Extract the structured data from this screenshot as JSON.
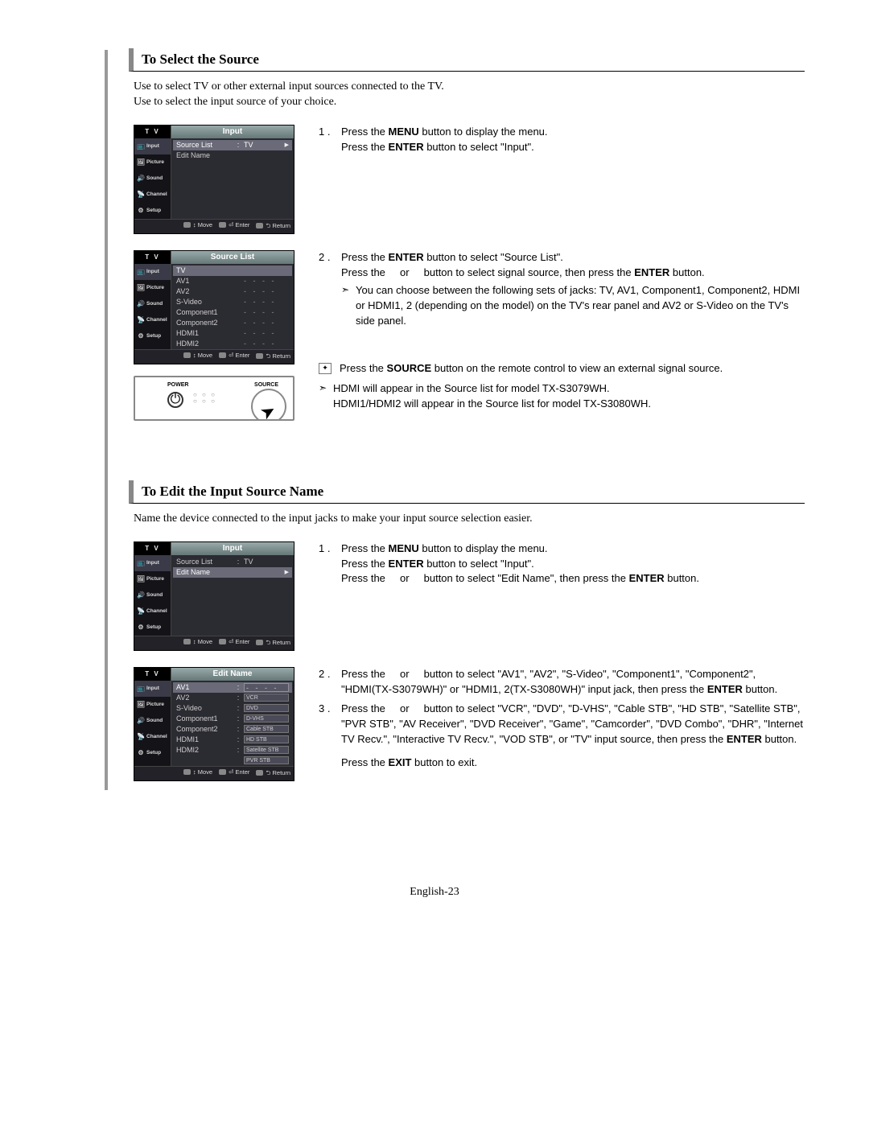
{
  "colors": {
    "page_bg": "#ffffff",
    "text": "#000000",
    "gutter": "#999999",
    "heading_accent": "#888888",
    "osd_bg": "#2b2b32",
    "osd_side_bg": "#131318",
    "osd_title_grad_from": "#99aaaa",
    "osd_title_grad_to": "#667777",
    "osd_text": "#cfcfcf",
    "osd_sel": "#6a6a78",
    "remote_border": "#888888"
  },
  "typography": {
    "heading_font": "Times New Roman",
    "heading_size_pt": 13,
    "body_font": "Times New Roman",
    "body_size_pt": 10.5,
    "instr_font": "Arial",
    "instr_size_pt": 10,
    "osd_font": "Arial",
    "osd_label_size_pt": 7
  },
  "page_number": "English-23",
  "section1": {
    "heading": "To Select the Source",
    "intro_line1": "Use to select TV or other external input sources connected to the TV.",
    "intro_line2": "Use to select the input source of your choice.",
    "osd_input": {
      "tv_badge": "T V",
      "title": "Input",
      "side_items": [
        "Input",
        "Picture",
        "Sound",
        "Channel",
        "Setup"
      ],
      "selected_side_index": 0,
      "rows": [
        {
          "label": "Source List",
          "sep": ":",
          "value": "TV",
          "selected": true,
          "caret": true
        },
        {
          "label": "Edit Name",
          "sep": "",
          "value": "",
          "selected": false
        }
      ],
      "hints": [
        "Move",
        "Enter",
        "Return"
      ]
    },
    "osd_source_list": {
      "tv_badge": "T V",
      "title": "Source List",
      "side_items": [
        "Input",
        "Picture",
        "Sound",
        "Channel",
        "Setup"
      ],
      "selected_side_index": 0,
      "rows": [
        {
          "label": "TV",
          "value": "",
          "selected": true
        },
        {
          "label": "AV1",
          "value": "- - - -"
        },
        {
          "label": "AV2",
          "value": "- - - -"
        },
        {
          "label": "S-Video",
          "value": "- - - -"
        },
        {
          "label": "Component1",
          "value": "- - - -"
        },
        {
          "label": "Component2",
          "value": "- - - -"
        },
        {
          "label": "HDMI1",
          "value": "- - - -"
        },
        {
          "label": "HDMI2",
          "value": "- - - -"
        }
      ],
      "hints": [
        "Move",
        "Enter",
        "Return"
      ]
    },
    "remote": {
      "power_label": "POWER",
      "source_label": "SOURCE"
    },
    "steps": {
      "s1a": "Press the ",
      "s1a_bold": "MENU",
      "s1a_tail": " button to display the menu.",
      "s1b": "Press the ",
      "s1b_bold": "ENTER",
      "s1b_tail": " button to select \"Input\".",
      "s2a": "Press the ",
      "s2a_bold": "ENTER",
      "s2a_tail": " button to select \"Source List\".",
      "s2b_pre": "Press the ",
      "s2b_or": " or ",
      "s2b_mid": " button to select signal source, then press the ",
      "s2b_bold": "ENTER",
      "s2b_tail": " button.",
      "s2_note": "You can choose between the following sets of jacks: TV, AV1, Component1, Component2, HDMI or HDMI1, 2 (depending on the model) on the TV's rear panel and AV2 or S-Video on the TV's side panel.",
      "icon_note_pre": "Press the ",
      "icon_note_bold": "SOURCE",
      "icon_note_tail": " button on the remote control to view an external signal source.",
      "hdmi_note1": "HDMI will appear in the Source list for model TX-S3079WH.",
      "hdmi_note2": "HDMI1/HDMI2 will appear in the Source list for model TX-S3080WH."
    }
  },
  "section2": {
    "heading": "To Edit the Input Source Name",
    "intro": "Name the device connected to the input jacks to make your input source selection easier.",
    "osd_input": {
      "tv_badge": "T V",
      "title": "Input",
      "side_items": [
        "Input",
        "Picture",
        "Sound",
        "Channel",
        "Setup"
      ],
      "selected_side_index": 0,
      "rows": [
        {
          "label": "Source List",
          "sep": ":",
          "value": "TV"
        },
        {
          "label": "Edit Name",
          "sep": "",
          "value": "",
          "selected": true,
          "caret": true
        }
      ],
      "hints": [
        "Move",
        "Enter",
        "Return"
      ]
    },
    "osd_edit_name": {
      "tv_badge": "T V",
      "title": "Edit Name",
      "side_items": [
        "Input",
        "Picture",
        "Sound",
        "Channel",
        "Setup"
      ],
      "selected_side_index": 0,
      "rows": [
        {
          "label": "AV1",
          "sep": ":",
          "value": "- - - -",
          "selected": true,
          "boxed": true
        },
        {
          "label": "AV2",
          "sep": ":",
          "value": "VCR",
          "opt": true
        },
        {
          "label": "S-Video",
          "sep": ":",
          "value": "DVD",
          "opt": true
        },
        {
          "label": "Component1",
          "sep": ":",
          "value": "D-VHS",
          "opt": true
        },
        {
          "label": "Component2",
          "sep": ":",
          "value": "Cable STB",
          "opt": true
        },
        {
          "label": "HDMI1",
          "sep": ":",
          "value": "HD STB",
          "opt": true
        },
        {
          "label": "HDMI2",
          "sep": ":",
          "value": "Satellite STB",
          "opt": true
        },
        {
          "label": "",
          "sep": "",
          "value": "PVR STB",
          "opt": true
        }
      ],
      "hints": [
        "Move",
        "Enter",
        "Return"
      ]
    },
    "steps": {
      "s1a": "Press the ",
      "s1a_bold": "MENU",
      "s1a_tail": " button to display the menu.",
      "s1b": "Press the ",
      "s1b_bold": "ENTER",
      "s1b_tail": " button to select \"Input\".",
      "s1c_pre": "Press the ",
      "s1c_or": " or ",
      "s1c_mid": " button to select \"Edit Name\", then press the ",
      "s1c_bold": "ENTER",
      "s1c_tail": " button.",
      "s2_pre": "Press the ",
      "s2_or": " or ",
      "s2_mid": " button to select \"AV1\", \"AV2\", \"S-Video\", \"Component1\", \"Component2\", \"HDMI(TX-S3079WH)\" or \"HDMI1, 2(TX-S3080WH)\" input jack, then press the ",
      "s2_bold": "ENTER",
      "s2_tail": " button.",
      "s3_pre": "Press the ",
      "s3_or": " or ",
      "s3_mid": " button to select \"VCR\", \"DVD\", \"D-VHS\", \"Cable STB\", \"HD STB\", \"Satellite STB\", \"PVR STB\", \"AV Receiver\", \"DVD Receiver\", \"Game\", \"Camcorder\", \"DVD Combo\", \"DHR\", \"Internet TV Recv.\", \"Interactive TV Recv.\", \"VOD STB\", or \"TV\" input source, then press the ",
      "s3_bold": "ENTER",
      "s3_tail": " button.",
      "exit_pre": "Press the ",
      "exit_bold": "EXIT",
      "exit_tail": " button to exit."
    }
  }
}
